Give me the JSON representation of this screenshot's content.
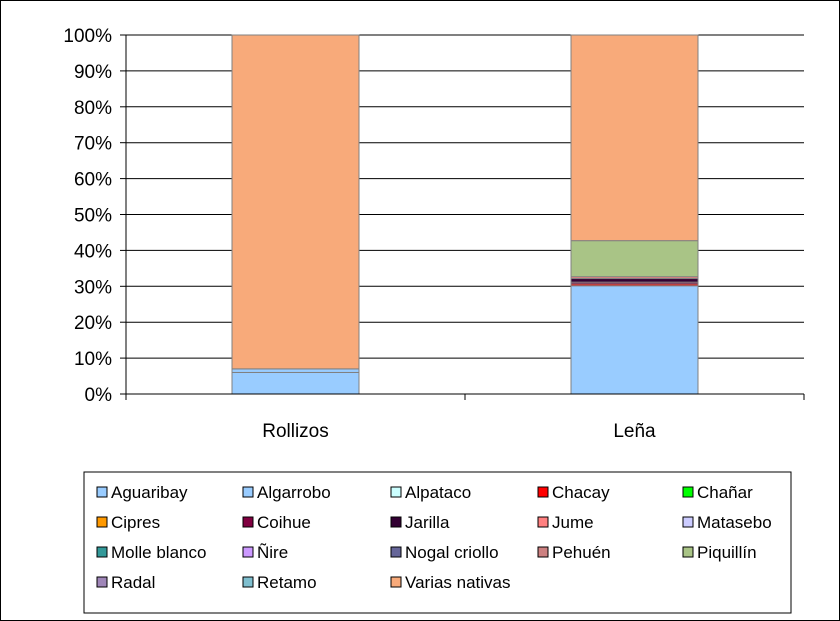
{
  "chart_data": {
    "type": "bar",
    "stacked": true,
    "percent_stacked": true,
    "title": "",
    "xlabel": "",
    "ylabel": "",
    "ylim": [
      0,
      100
    ],
    "yticks": [
      "0%",
      "10%",
      "20%",
      "30%",
      "40%",
      "50%",
      "60%",
      "70%",
      "80%",
      "90%",
      "100%"
    ],
    "gridlines": true,
    "legend_position": "bottom",
    "categories": [
      "Rollizos",
      "Leña"
    ],
    "series": [
      {
        "name": "Aguaribay",
        "color": "#99ccff",
        "values": [
          6.0,
          30.0
        ]
      },
      {
        "name": "Algarrobo",
        "color": "#99ccff",
        "values": [
          1.0,
          0.0
        ]
      },
      {
        "name": "Alpataco",
        "color": "#ccffff",
        "values": [
          0,
          0
        ]
      },
      {
        "name": "Chacay",
        "color": "#ff0000",
        "values": [
          0,
          0.5
        ]
      },
      {
        "name": "Chañar",
        "color": "#00ff00",
        "values": [
          0,
          0
        ]
      },
      {
        "name": "Cipres",
        "color": "#ff9900",
        "values": [
          0,
          0
        ]
      },
      {
        "name": "Coihue",
        "color": "#800040",
        "values": [
          0,
          0.5
        ]
      },
      {
        "name": "Jarilla",
        "color": "#330033",
        "values": [
          0,
          1.0
        ]
      },
      {
        "name": "Jume",
        "color": "#ff8080",
        "values": [
          0,
          0.5
        ]
      },
      {
        "name": "Matasebo",
        "color": "#ccccff",
        "values": [
          0,
          0
        ]
      },
      {
        "name": "Molle blanco",
        "color": "#339999",
        "values": [
          0,
          0
        ]
      },
      {
        "name": "Ñire",
        "color": "#cc99ff",
        "values": [
          0,
          0
        ]
      },
      {
        "name": "Nogal criollo",
        "color": "#666699",
        "values": [
          0,
          0
        ]
      },
      {
        "name": "Pehuén",
        "color": "#cc8080",
        "values": [
          0,
          0
        ]
      },
      {
        "name": "Piquillín",
        "color": "#a9c486",
        "values": [
          0,
          10.0
        ]
      },
      {
        "name": "Radal",
        "color": "#9f86b8",
        "values": [
          0,
          0
        ]
      },
      {
        "name": "Retamo",
        "color": "#7fbfcf",
        "values": [
          0,
          0
        ]
      },
      {
        "name": "Varias nativas",
        "color": "#f8aa7a",
        "values": [
          93.0,
          57.0
        ]
      }
    ]
  }
}
